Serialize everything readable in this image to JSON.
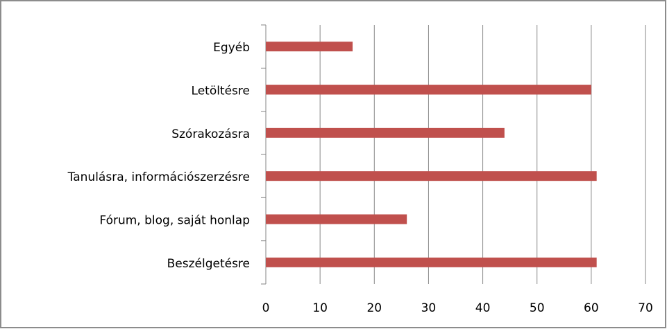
{
  "chart_data": {
    "type": "hbar",
    "categories": [
      "Egyéb",
      "Letöltésre",
      "Szórakozásra",
      "Tanulásra, információszerzésre",
      "Fórum, blog, saját honlap",
      "Beszélgetésre"
    ],
    "values": [
      16,
      60,
      44,
      61,
      26,
      61
    ],
    "color": "#c0504d",
    "xlim": [
      0,
      70
    ],
    "xticks": [
      0,
      10,
      20,
      30,
      40,
      50,
      60,
      70
    ],
    "grid": true
  }
}
